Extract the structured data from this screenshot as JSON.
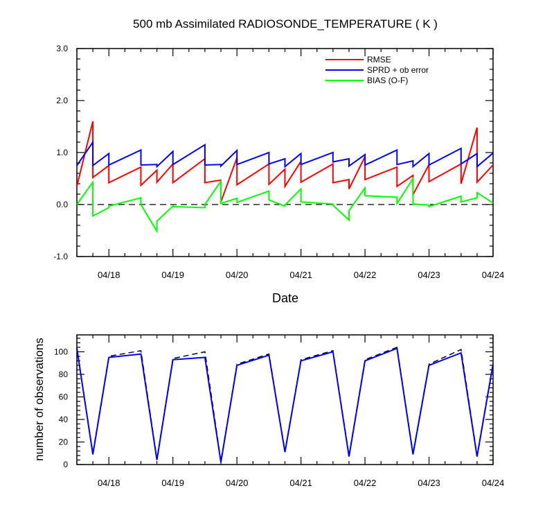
{
  "chart_data": [
    {
      "type": "line",
      "title": "500 mb Assimilated RADIOSONDE_TEMPERATURE ( K )",
      "xlabel": "Date",
      "ylabel": "",
      "ylim": [
        -1.0,
        3.0
      ],
      "yticks": [
        "-1.0",
        "0.0",
        "1.0",
        "2.0",
        "3.0"
      ],
      "xlim_days": [
        17.5,
        24
      ],
      "xtick_labels": [
        "04/18",
        "04/19",
        "04/20",
        "04/21",
        "04/22",
        "04/23",
        "04/24"
      ],
      "legend_placement": "top-right",
      "zero_line": "dashed",
      "series": [
        {
          "name": "RMSE",
          "color": "#ff0000",
          "points": [
            [
              17.5,
              0.35
            ],
            [
              17.75,
              1.6
            ],
            [
              17.75,
              0.52
            ],
            [
              18.0,
              0.75
            ],
            [
              18.0,
              0.42
            ],
            [
              18.5,
              0.72
            ],
            [
              18.5,
              0.37
            ],
            [
              18.75,
              0.66
            ],
            [
              18.75,
              0.43
            ],
            [
              19.0,
              0.78
            ],
            [
              19.0,
              0.42
            ],
            [
              19.5,
              0.88
            ],
            [
              19.5,
              0.42
            ],
            [
              19.75,
              0.47
            ],
            [
              19.75,
              0.05
            ],
            [
              20.0,
              0.9
            ],
            [
              20.0,
              0.38
            ],
            [
              20.5,
              0.78
            ],
            [
              20.5,
              0.39
            ],
            [
              20.75,
              0.68
            ],
            [
              20.75,
              0.35
            ],
            [
              21.0,
              0.83
            ],
            [
              21.0,
              0.43
            ],
            [
              21.5,
              0.78
            ],
            [
              21.5,
              0.42
            ],
            [
              21.75,
              0.48
            ],
            [
              21.75,
              0.3
            ],
            [
              22.0,
              0.92
            ],
            [
              22.0,
              0.48
            ],
            [
              22.5,
              0.72
            ],
            [
              22.5,
              0.35
            ],
            [
              22.75,
              0.56
            ],
            [
              22.75,
              0.19
            ],
            [
              23.0,
              0.77
            ],
            [
              23.0,
              0.44
            ],
            [
              23.5,
              0.78
            ],
            [
              23.5,
              0.4
            ],
            [
              23.75,
              1.48
            ],
            [
              23.75,
              0.43
            ],
            [
              24.0,
              0.76
            ]
          ]
        },
        {
          "name": "SPRD + ob error",
          "color": "#0000ff",
          "points": [
            [
              17.5,
              0.75
            ],
            [
              17.75,
              1.2
            ],
            [
              17.75,
              0.75
            ],
            [
              18.0,
              0.98
            ],
            [
              18.0,
              0.76
            ],
            [
              18.5,
              1.05
            ],
            [
              18.5,
              0.76
            ],
            [
              18.75,
              0.77
            ],
            [
              18.75,
              0.73
            ],
            [
              19.0,
              1.02
            ],
            [
              19.0,
              0.77
            ],
            [
              19.5,
              1.15
            ],
            [
              19.5,
              0.76
            ],
            [
              19.75,
              0.77
            ],
            [
              19.75,
              0.74
            ],
            [
              20.0,
              1.04
            ],
            [
              20.0,
              0.77
            ],
            [
              20.5,
              1.0
            ],
            [
              20.5,
              0.78
            ],
            [
              20.75,
              0.88
            ],
            [
              20.75,
              0.73
            ],
            [
              21.0,
              0.98
            ],
            [
              21.0,
              0.77
            ],
            [
              21.5,
              1.0
            ],
            [
              21.5,
              0.82
            ],
            [
              21.75,
              0.88
            ],
            [
              21.75,
              0.74
            ],
            [
              22.0,
              0.96
            ],
            [
              22.0,
              0.76
            ],
            [
              22.5,
              1.05
            ],
            [
              22.5,
              0.77
            ],
            [
              22.75,
              0.84
            ],
            [
              22.75,
              0.73
            ],
            [
              23.0,
              0.98
            ],
            [
              23.0,
              0.76
            ],
            [
              23.5,
              1.08
            ],
            [
              23.5,
              0.78
            ],
            [
              23.75,
              0.98
            ],
            [
              23.75,
              0.73
            ],
            [
              24.0,
              0.99
            ]
          ]
        },
        {
          "name": "BIAS (O-F)",
          "color": "#00ff00",
          "points": [
            [
              17.5,
              0.0
            ],
            [
              17.75,
              0.43
            ],
            [
              17.75,
              -0.22
            ],
            [
              18.0,
              -0.06
            ],
            [
              18.0,
              -0.03
            ],
            [
              18.5,
              0.13
            ],
            [
              18.5,
              0.0
            ],
            [
              18.75,
              -0.51
            ],
            [
              18.75,
              -0.32
            ],
            [
              19.0,
              -0.03
            ],
            [
              19.0,
              -0.04
            ],
            [
              19.5,
              -0.06
            ],
            [
              19.5,
              0.0
            ],
            [
              19.75,
              0.45
            ],
            [
              19.75,
              0.02
            ],
            [
              20.0,
              0.12
            ],
            [
              20.0,
              0.04
            ],
            [
              20.5,
              0.26
            ],
            [
              20.5,
              0.09
            ],
            [
              20.75,
              -0.03
            ],
            [
              20.75,
              -0.01
            ],
            [
              21.0,
              0.3
            ],
            [
              21.0,
              0.05
            ],
            [
              21.5,
              0.01
            ],
            [
              21.5,
              -0.01
            ],
            [
              21.75,
              -0.3
            ],
            [
              21.75,
              -0.12
            ],
            [
              22.0,
              0.32
            ],
            [
              22.0,
              0.17
            ],
            [
              22.5,
              0.14
            ],
            [
              22.5,
              0.02
            ],
            [
              22.75,
              0.5
            ],
            [
              22.75,
              0.01
            ],
            [
              23.0,
              -0.01
            ],
            [
              23.0,
              -0.04
            ],
            [
              23.5,
              0.16
            ],
            [
              23.5,
              0.05
            ],
            [
              23.75,
              0.13
            ],
            [
              23.75,
              0.23
            ],
            [
              24.0,
              0.03
            ]
          ]
        }
      ]
    },
    {
      "type": "line",
      "title": "",
      "xlabel": "",
      "ylabel": "number of observations",
      "ylim": [
        0,
        115
      ],
      "yticks": [
        "0",
        "20",
        "40",
        "60",
        "80",
        "100"
      ],
      "xlim_days": [
        17.5,
        24
      ],
      "xtick_labels": [
        "04/18",
        "04/19",
        "04/20",
        "04/21",
        "04/22",
        "04/23",
        "04/24"
      ],
      "series": [
        {
          "style": "dashed",
          "color": "#000000",
          "points": [
            [
              17.5,
              104
            ],
            [
              17.75,
              10
            ],
            [
              18.0,
              96
            ],
            [
              18.5,
              101
            ],
            [
              18.75,
              5
            ],
            [
              19.0,
              94
            ],
            [
              19.5,
              100
            ],
            [
              19.75,
              3
            ],
            [
              20.0,
              89
            ],
            [
              20.5,
              98
            ],
            [
              20.75,
              12
            ],
            [
              21.0,
              93
            ],
            [
              21.5,
              101
            ],
            [
              21.75,
              8
            ],
            [
              22.0,
              93
            ],
            [
              22.5,
              104
            ],
            [
              22.75,
              10
            ],
            [
              23.0,
              89
            ],
            [
              23.5,
              102
            ],
            [
              23.75,
              8
            ],
            [
              24.0,
              90
            ]
          ]
        },
        {
          "style": "solid",
          "color": "#0000ff",
          "points": [
            [
              17.5,
              103
            ],
            [
              17.75,
              9
            ],
            [
              18.0,
              95
            ],
            [
              18.5,
              98
            ],
            [
              18.75,
              4
            ],
            [
              19.0,
              93
            ],
            [
              19.5,
              95
            ],
            [
              19.75,
              2
            ],
            [
              20.0,
              88
            ],
            [
              20.5,
              97
            ],
            [
              20.75,
              11
            ],
            [
              21.0,
              92
            ],
            [
              21.5,
              100
            ],
            [
              21.75,
              7
            ],
            [
              22.0,
              92
            ],
            [
              22.5,
              103
            ],
            [
              22.75,
              9
            ],
            [
              23.0,
              88
            ],
            [
              23.5,
              99
            ],
            [
              23.75,
              7
            ],
            [
              24.0,
              89
            ]
          ]
        }
      ]
    }
  ]
}
